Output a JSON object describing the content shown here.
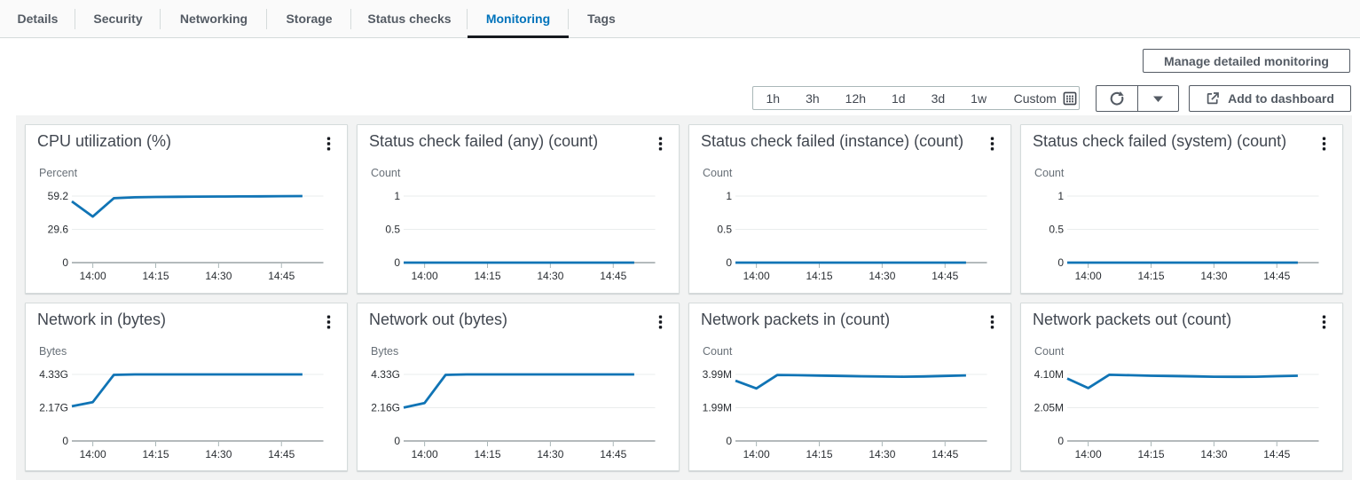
{
  "tabs": {
    "active": "Monitoring",
    "items": [
      {
        "label": "Details"
      },
      {
        "label": "Security"
      },
      {
        "label": "Networking"
      },
      {
        "label": "Storage"
      },
      {
        "label": "Status checks"
      },
      {
        "label": "Monitoring"
      },
      {
        "label": "Tags"
      }
    ]
  },
  "toolbar": {
    "manage_button_label": "Manage detailed monitoring",
    "time_range_options": [
      "1h",
      "3h",
      "12h",
      "1d",
      "3d",
      "1w"
    ],
    "custom_label": "Custom",
    "add_to_dashboard_label": "Add to dashboard",
    "icons": [
      "calendar-icon",
      "refresh-icon",
      "caret-down-icon",
      "external-link-icon"
    ]
  },
  "colors": {
    "accent": "#0073bb",
    "active_tab_underline": "#16191f",
    "chart_line": "#1074b5",
    "panel_background": "#f2f3f3",
    "card_border": "#d5dbdb",
    "grid_line": "#eaeded",
    "axis_line": "#b4babc",
    "button_text": "#545b64"
  },
  "chart_data": [
    {
      "type": "line",
      "title": "CPU utilization (%)",
      "ylabel": "Percent",
      "yticks": [
        "59.2",
        "29.6",
        "0"
      ],
      "ymax": 59.2,
      "xticks": [
        "14:00",
        "14:15",
        "14:30",
        "14:45"
      ],
      "x_minutes": [
        0,
        5,
        10,
        15,
        20,
        25,
        30,
        35,
        40,
        45,
        50,
        55
      ],
      "x_domain_minutes": 60,
      "values": [
        54.5,
        41.0,
        57.3,
        58.1,
        58.4,
        58.6,
        58.7,
        58.8,
        58.9,
        59.0,
        59.1,
        59.2
      ]
    },
    {
      "type": "line",
      "title": "Status check failed (any) (count)",
      "ylabel": "Count",
      "yticks": [
        "1",
        "0.5",
        "0"
      ],
      "ymax": 1,
      "xticks": [
        "14:00",
        "14:15",
        "14:30",
        "14:45"
      ],
      "x_minutes": [
        0,
        5,
        10,
        15,
        20,
        25,
        30,
        35,
        40,
        45,
        50,
        55
      ],
      "x_domain_minutes": 60,
      "values": [
        0,
        0,
        0,
        0,
        0,
        0,
        0,
        0,
        0,
        0,
        0,
        0
      ]
    },
    {
      "type": "line",
      "title": "Status check failed (instance) (count)",
      "ylabel": "Count",
      "yticks": [
        "1",
        "0.5",
        "0"
      ],
      "ymax": 1,
      "xticks": [
        "14:00",
        "14:15",
        "14:30",
        "14:45"
      ],
      "x_minutes": [
        0,
        5,
        10,
        15,
        20,
        25,
        30,
        35,
        40,
        45,
        50,
        55
      ],
      "x_domain_minutes": 60,
      "values": [
        0,
        0,
        0,
        0,
        0,
        0,
        0,
        0,
        0,
        0,
        0,
        0
      ]
    },
    {
      "type": "line",
      "title": "Status check failed (system) (count)",
      "ylabel": "Count",
      "yticks": [
        "1",
        "0.5",
        "0"
      ],
      "ymax": 1,
      "xticks": [
        "14:00",
        "14:15",
        "14:30",
        "14:45"
      ],
      "x_minutes": [
        0,
        5,
        10,
        15,
        20,
        25,
        30,
        35,
        40,
        45,
        50,
        55
      ],
      "x_domain_minutes": 60,
      "values": [
        0,
        0,
        0,
        0,
        0,
        0,
        0,
        0,
        0,
        0,
        0,
        0
      ]
    },
    {
      "type": "line",
      "title": "Network in (bytes)",
      "ylabel": "Bytes",
      "yticks": [
        "4.33G",
        "2.17G",
        "0"
      ],
      "ymax": 4.33,
      "xticks": [
        "14:00",
        "14:15",
        "14:30",
        "14:45"
      ],
      "x_minutes": [
        0,
        5,
        10,
        15,
        20,
        25,
        30,
        35,
        40,
        45,
        50,
        55
      ],
      "x_domain_minutes": 60,
      "values": [
        2.26,
        2.53,
        4.3,
        4.33,
        4.33,
        4.33,
        4.33,
        4.33,
        4.33,
        4.33,
        4.33,
        4.33
      ]
    },
    {
      "type": "line",
      "title": "Network out (bytes)",
      "ylabel": "Bytes",
      "yticks": [
        "4.33G",
        "2.16G",
        "0"
      ],
      "ymax": 4.33,
      "xticks": [
        "14:00",
        "14:15",
        "14:30",
        "14:45"
      ],
      "x_minutes": [
        0,
        5,
        10,
        15,
        20,
        25,
        30,
        35,
        40,
        45,
        50,
        55
      ],
      "x_domain_minutes": 60,
      "values": [
        2.17,
        2.47,
        4.3,
        4.33,
        4.33,
        4.33,
        4.33,
        4.33,
        4.33,
        4.33,
        4.33,
        4.33
      ]
    },
    {
      "type": "line",
      "title": "Network packets in (count)",
      "ylabel": "Count",
      "yticks": [
        "3.99M",
        "1.99M",
        "0"
      ],
      "ymax": 3.99,
      "xticks": [
        "14:00",
        "14:15",
        "14:30",
        "14:45"
      ],
      "x_minutes": [
        0,
        5,
        10,
        15,
        20,
        25,
        30,
        35,
        40,
        45,
        50,
        55
      ],
      "x_domain_minutes": 60,
      "values": [
        3.61,
        3.15,
        3.96,
        3.94,
        3.92,
        3.9,
        3.88,
        3.86,
        3.85,
        3.87,
        3.9,
        3.93
      ]
    },
    {
      "type": "line",
      "title": "Network packets out (count)",
      "ylabel": "Count",
      "yticks": [
        "4.10M",
        "2.05M",
        "0"
      ],
      "ymax": 4.1,
      "xticks": [
        "14:00",
        "14:15",
        "14:30",
        "14:45"
      ],
      "x_minutes": [
        0,
        5,
        10,
        15,
        20,
        25,
        30,
        35,
        40,
        45,
        50,
        55
      ],
      "x_domain_minutes": 60,
      "values": [
        3.85,
        3.26,
        4.08,
        4.05,
        4.02,
        4.0,
        3.98,
        3.96,
        3.95,
        3.96,
        3.99,
        4.02
      ]
    }
  ]
}
